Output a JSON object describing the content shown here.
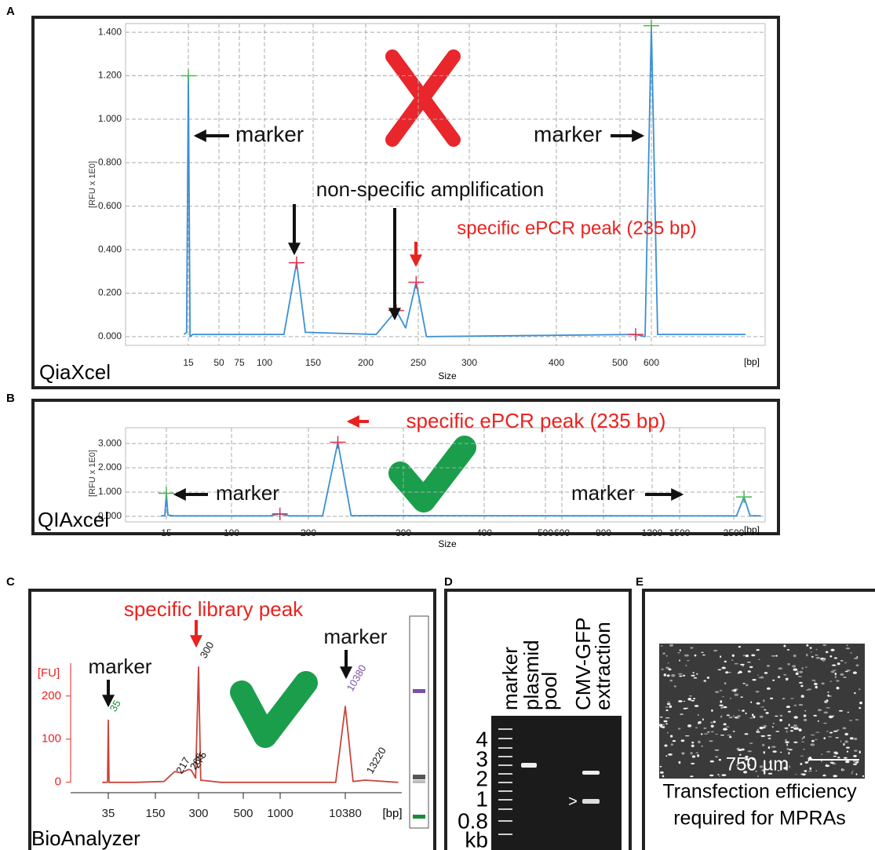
{
  "panel_labels": [
    "A",
    "B",
    "C",
    "D",
    "E"
  ],
  "chart_data": [
    {
      "type": "line",
      "instrument": "QiaXcel",
      "ylabel": "[RFU x 1E0]",
      "xlabel": "Size",
      "xunit": "[bp]",
      "color": "#3a8fd6",
      "grid": true,
      "peak_crosses": true,
      "frame": true,
      "ylim": [
        -0.04,
        1.44
      ],
      "yticks": [
        {
          "value": 0,
          "label": "0.000"
        },
        {
          "value": 0.2,
          "label": "0.200"
        },
        {
          "value": 0.4,
          "label": "0.400"
        },
        {
          "value": 0.6,
          "label": "0.600"
        },
        {
          "value": 0.8,
          "label": "0.800"
        },
        {
          "value": 1,
          "label": "1.000"
        },
        {
          "value": 1.2,
          "label": "1.200"
        },
        {
          "value": 1.4,
          "label": "1.400"
        }
      ],
      "xticks": [
        15,
        50,
        75,
        100,
        150,
        200,
        250,
        300,
        400,
        500,
        600
      ],
      "x": [
        10,
        13,
        15,
        17,
        20,
        120,
        133,
        142,
        210,
        229,
        238,
        248,
        258,
        550,
        580,
        600,
        620,
        900
      ],
      "values": [
        0.01,
        0.02,
        1.2,
        0.0,
        0.01,
        0.01,
        0.34,
        0.02,
        0.01,
        0.12,
        0.04,
        0.25,
        0.0,
        0.01,
        0.0,
        1.43,
        0.01,
        0.01
      ],
      "annotations": [
        "marker",
        "marker",
        "non-specific amplification",
        "specific ePCR peak (235 bp)"
      ]
    },
    {
      "type": "line",
      "instrument": "QIAxcel",
      "ylabel": "[RFU x 1E0]",
      "xlabel": "Size",
      "xunit": "[bp]",
      "color": "#3a8fd6",
      "grid": true,
      "peak_crosses": true,
      "frame": true,
      "ylim": [
        -0.23,
        3.65
      ],
      "yticks": [
        {
          "value": 0,
          "label": "0.000"
        },
        {
          "value": 1,
          "label": "1.000"
        },
        {
          "value": 2,
          "label": "2.000"
        },
        {
          "value": 3,
          "label": "3.000"
        }
      ],
      "xticks": [
        15,
        100,
        200,
        300,
        400,
        500,
        600,
        800,
        1200,
        1500,
        2500
      ],
      "x": [
        8,
        13,
        15,
        17,
        25,
        150,
        163,
        175,
        215,
        231,
        245,
        2550,
        2690,
        2800,
        3000
      ],
      "values": [
        0.02,
        0.03,
        0.95,
        0.05,
        0.02,
        0.02,
        0.1,
        0.02,
        0.02,
        3.05,
        0.03,
        0.02,
        0.8,
        0.03,
        0.02
      ],
      "annotations": [
        "specific ePCR peak (235 bp)",
        "marker",
        "marker"
      ]
    },
    {
      "type": "line",
      "instrument": "BioAnalyzer",
      "ylabel": "[FU]",
      "xunit": "[bp]",
      "color": "#c8463c",
      "grid": false,
      "peak_crosses": false,
      "frame": false,
      "ytick_color": "#e8231f",
      "ylim": [
        -15,
        276
      ],
      "yticks": [
        0,
        100,
        200
      ],
      "xticks": [
        35,
        150,
        300,
        500,
        1000,
        10380
      ],
      "x": [
        20,
        33,
        35,
        37,
        100,
        180,
        217,
        240,
        265,
        275,
        290,
        300,
        310,
        400,
        1000,
        9000,
        10380,
        11500,
        13220,
        18000
      ],
      "values": [
        0,
        0,
        144,
        0,
        0,
        2,
        25,
        22,
        30,
        28,
        10,
        267,
        5,
        0,
        0,
        0,
        176,
        2,
        5,
        0
      ],
      "peak_labels": [
        35,
        300,
        217,
        265,
        275,
        10380,
        13220
      ],
      "annotations": [
        "specific library peak",
        "marker",
        "marker"
      ]
    }
  ],
  "gel": {
    "lanes": [
      [
        "marker"
      ],
      [
        "plasmid",
        "pool"
      ],
      [
        "CMV-GFP",
        "extraction"
      ]
    ],
    "ladder": [
      "4",
      "3",
      "2",
      "1",
      "0.8",
      "kb"
    ],
    "arrow": ">"
  },
  "image": {
    "scale_bar": "750 µm",
    "caption": [
      "Transfection efficiency",
      "required for MPRAs"
    ]
  }
}
